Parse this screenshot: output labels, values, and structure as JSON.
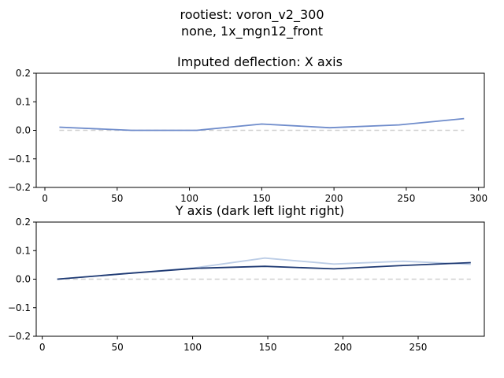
{
  "suptitle": {
    "line1": "rootiest: voron_v2_300",
    "line2": "none, 1x_mgn12_front"
  },
  "colors": {
    "x_series": "#6f8ccb",
    "y_dark": "#1f3a73",
    "y_light": "#bccde6",
    "baseline": "#d0d0d0"
  },
  "chart_data": [
    {
      "type": "line",
      "title": "Imputed deflection: X axis",
      "xlabel": "",
      "ylabel": "",
      "xlim": [
        -6,
        304
      ],
      "ylim": [
        -0.2,
        0.2
      ],
      "xticks": [
        0,
        50,
        100,
        150,
        200,
        250,
        300
      ],
      "yticks": [
        -0.2,
        -0.1,
        0.0,
        0.1,
        0.2
      ],
      "ytick_labels": [
        "−0.2",
        "−0.1",
        "0.0",
        "0.1",
        "0.2"
      ],
      "grid": false,
      "baseline": {
        "y": 0,
        "x_start": 10,
        "x_end": 290,
        "style": "dashed"
      },
      "series": [
        {
          "color_key": "x_series",
          "x": [
            10,
            60,
            105,
            150,
            197,
            245,
            290
          ],
          "y": [
            0.011,
            0.0,
            0.0,
            0.022,
            0.009,
            0.019,
            0.041
          ]
        }
      ]
    },
    {
      "type": "line",
      "title": "Y axis (dark left light right)",
      "xlabel": "",
      "ylabel": "",
      "xlim": [
        -4,
        294
      ],
      "ylim": [
        -0.2,
        0.2
      ],
      "xticks": [
        0,
        50,
        100,
        150,
        200,
        250
      ],
      "yticks": [
        -0.2,
        -0.1,
        0.0,
        0.1,
        0.2
      ],
      "ytick_labels": [
        "−0.2",
        "−0.1",
        "0.0",
        "0.1",
        "0.2"
      ],
      "grid": false,
      "baseline": {
        "y": 0,
        "x_start": 10,
        "x_end": 285,
        "style": "dashed"
      },
      "series": [
        {
          "color_key": "y_light",
          "x": [
            10,
            56,
            102,
            148,
            194,
            240,
            285
          ],
          "y": [
            0.0,
            0.02,
            0.04,
            0.074,
            0.053,
            0.063,
            0.052
          ]
        },
        {
          "color_key": "y_dark",
          "x": [
            10,
            56,
            102,
            148,
            194,
            240,
            285
          ],
          "y": [
            0.0,
            0.02,
            0.038,
            0.045,
            0.036,
            0.048,
            0.058
          ]
        }
      ]
    }
  ]
}
